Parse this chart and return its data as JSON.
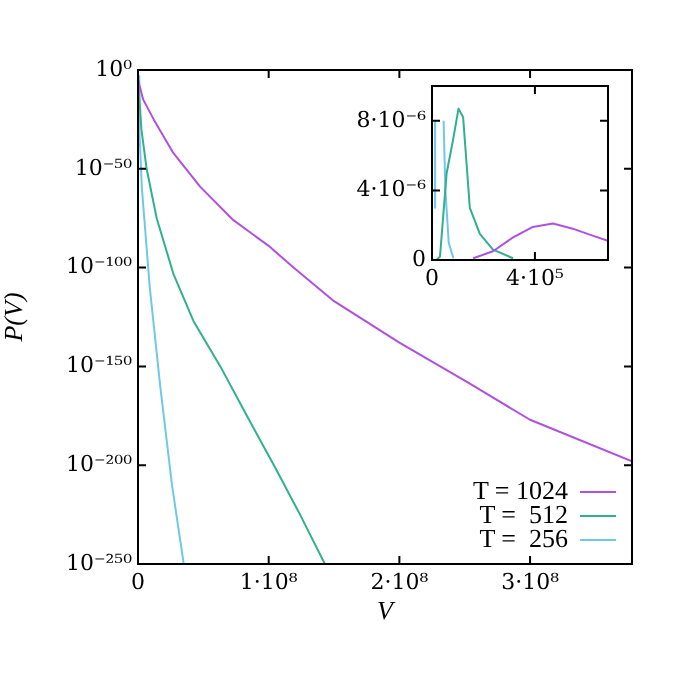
{
  "chart_data": [
    {
      "type": "line",
      "xlabel": "V",
      "ylabel": "P(V)",
      "log": "y",
      "grid": false,
      "legend": "bottom right",
      "marker": "none",
      "line_style": "solid",
      "xlim": [
        0,
        378000000
      ],
      "xticks": [
        0,
        {
          "value": 100000000,
          "label": "1·10⁸"
        },
        {
          "value": 200000000,
          "label": "2·10⁸"
        },
        {
          "value": 300000000,
          "label": "3·10⁸"
        }
      ],
      "ylim": [
        1e-250,
        1
      ],
      "yticks": [
        {
          "value": 1,
          "label": "10⁰"
        },
        {
          "value": 1e-50,
          "label": "10⁻⁵⁰"
        },
        {
          "value": 1e-100,
          "label": "10⁻¹⁰⁰"
        },
        {
          "value": 1e-150,
          "label": "10⁻¹⁵⁰"
        },
        {
          "value": 1e-200,
          "label": "10⁻²⁰⁰"
        },
        {
          "value": 1e-250,
          "label": "10⁻²⁵⁰"
        }
      ],
      "series": [
        {
          "name": "T = 1024",
          "color": "#b050e0",
          "x": [
            0,
            4000000,
            12000000,
            27000000,
            47500000,
            73000000,
            100000000,
            119000000,
            150000000,
            200000000,
            252000000,
            300000000,
            378000000
          ],
          "values": [
            1e-05,
            1e-15,
            1e-25,
            1e-42,
            1e-59,
            1e-76,
            1e-89,
            1e-100,
            1e-117,
            1e-138,
            1e-158,
            1e-177,
            1e-198
          ]
        },
        {
          "name": "T =  512",
          "color": "#30b090",
          "x": [
            0,
            2600000,
            6600000,
            14300000,
            27000000,
            42400000,
            63000000,
            83300000,
            104000000,
            124000000,
            143000000
          ],
          "values": [
            0.001,
            1e-30,
            1e-50,
            1e-75,
            1e-103,
            1e-127,
            1e-150,
            1e-175,
            1e-200,
            1e-225,
            1e-250
          ]
        },
        {
          "name": "T =  256",
          "color": "#70c8e8",
          "x": [
            0,
            1000000,
            3000000,
            9000000,
            17000000,
            26000000,
            35000000
          ],
          "values": [
            0.001,
            1e-30,
            1e-60,
            1e-110,
            1e-160,
            1e-210,
            1e-250
          ]
        }
      ]
    },
    {
      "type": "line",
      "grid": false,
      "marker": "none",
      "line_style": "solid",
      "xlim": [
        0,
        684000
      ],
      "xticks": [
        0,
        {
          "value": 400000,
          "label": "4·10⁵"
        }
      ],
      "ylim": [
        0,
        1e-05
      ],
      "yticks": [
        0,
        {
          "value": 4e-06,
          "label": "4·10⁻⁶"
        },
        {
          "value": 8e-06,
          "label": "8·10⁻⁶"
        }
      ],
      "series": [
        {
          "color": "#b050e0",
          "x": [
            160000,
            237000,
            315000,
            392000,
            470000,
            547000,
            624000,
            684000
          ],
          "values": [
            1e-07,
            5e-07,
            1.3e-06,
            1.9e-06,
            2.1e-06,
            1.8e-06,
            1.4e-06,
            1.1e-06
          ]
        },
        {
          "color": "#30b090",
          "x": [
            0,
            18000,
            31000,
            57000,
            83000,
            103000,
            121000,
            147000,
            186000,
            237000,
            315000
          ],
          "values": [
            0,
            0,
            2e-07,
            5e-06,
            7e-06,
            8.7e-06,
            8.2e-06,
            3e-06,
            1.5e-06,
            6e-07,
            1e-07
          ]
        },
        {
          "color": "#70c8e8",
          "x": [
            9000,
            12000,
            25000,
            45000,
            52000,
            65000,
            83000
          ],
          "values": [
            3e-06,
            8e-06,
            null,
            8e-06,
            4e-06,
            1e-06,
            1e-07
          ]
        }
      ]
    }
  ]
}
